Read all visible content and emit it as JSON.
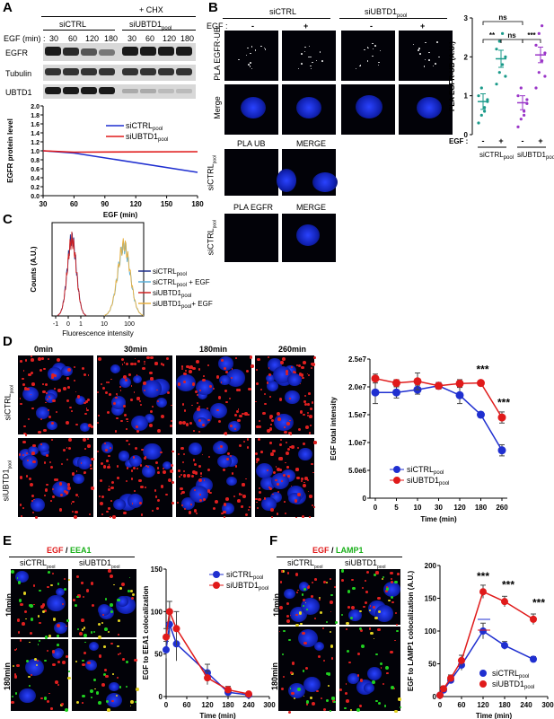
{
  "panels": {
    "A": "A",
    "B": "B",
    "C": "C",
    "D": "D",
    "E": "E",
    "F": "F"
  },
  "panelA": {
    "chx": "+ CHX",
    "siCTRL": "siCTRL",
    "siUBTD1": "siUBTD1",
    "siUBTD1_sub": "pool",
    "egf_label": "EGF (min) :",
    "timepoints": [
      "30",
      "60",
      "120",
      "180",
      "30",
      "60",
      "120",
      "180"
    ],
    "blots": [
      "EGFR",
      "Tubulin",
      "UBTD1"
    ]
  },
  "panelB": {
    "siCTRL": "siCTRL",
    "siUBTD1": "siUBTD1",
    "siUBTD1_sub": "pool",
    "egf": "EGF :",
    "signs": [
      "-",
      "+",
      "-",
      "+"
    ],
    "row_labels": [
      "PLA EGFR-UB",
      "Merge"
    ],
    "ctrl1_headers": [
      "PLA UB",
      "MERGE"
    ],
    "ctrl2_headers": [
      "PLA EGFR",
      "MERGE"
    ],
    "ctrl_row_label": "siCTRL",
    "ctrl_row_sub": "pool"
  },
  "panelD": {
    "times": [
      "0min",
      "30min",
      "180min",
      "260min"
    ],
    "rows": [
      "siCTRL",
      "siUBTD1"
    ],
    "row_sub": "pool"
  },
  "panelE": {
    "title_egf": "EGF",
    "title_sep": " / ",
    "title_marker": "EEA1",
    "cols": [
      "siCTRL",
      "siUBTD1"
    ],
    "col_sub": "pool",
    "rows": [
      "10min",
      "180min"
    ]
  },
  "panelF": {
    "title_egf": "EGF",
    "title_sep": " / ",
    "title_marker": "LAMP1",
    "cols": [
      "siCTRL",
      "siUBTD1"
    ],
    "col_sub": "pool",
    "rows": [
      "10min",
      "180min"
    ]
  },
  "colors": {
    "blue": "#1f2fd0",
    "red": "#e01a1a",
    "teal": "#1a9a8a",
    "purple": "#9a35c8",
    "egf": "#e01a1a",
    "eea1": "#1ab01a"
  },
  "chart_data": [
    {
      "id": "A",
      "type": "line",
      "x": [
        30,
        60,
        90,
        120,
        150,
        180
      ],
      "xticks": [
        "30",
        "60",
        "90",
        "120",
        "150",
        "180"
      ],
      "xlim": [
        30,
        180
      ],
      "ylim": [
        0,
        2.0
      ],
      "yticks": [
        "0.0",
        "0.2",
        "0.4",
        "0.6",
        "0.8",
        "1.0",
        "1.2",
        "1.4",
        "1.6",
        "1.8",
        "2.0"
      ],
      "xlabel": "EGF (min)",
      "ylabel": "EGFR protein level",
      "series": [
        {
          "name": "siCTRL",
          "sub": "pool",
          "color": "#1f2fd0",
          "x": [
            30,
            60,
            180
          ],
          "values": [
            1.0,
            0.95,
            0.52
          ]
        },
        {
          "name": "siUBTD1",
          "sub": "pool",
          "color": "#e01a1a",
          "x": [
            30,
            60,
            180
          ],
          "values": [
            1.0,
            0.97,
            0.98
          ]
        }
      ]
    },
    {
      "id": "B",
      "type": "scatter",
      "ylabel": "PLA EGFR-UB (A.U.)",
      "ylim": [
        0,
        3
      ],
      "yticks": [
        "0",
        "1",
        "2",
        "3"
      ],
      "egf_label": "EGF :",
      "groups": [
        {
          "sign": "-",
          "color": "#1a9a8a",
          "mean": 0.85,
          "sem": 0.2,
          "points": [
            0.3,
            0.5,
            0.7,
            0.85,
            1.0,
            1.2,
            0.6,
            0.9
          ]
        },
        {
          "sign": "+",
          "color": "#1a9a8a",
          "mean": 1.95,
          "sem": 0.22,
          "points": [
            1.3,
            1.6,
            1.8,
            2.0,
            2.2,
            2.4,
            2.6,
            1.5
          ]
        },
        {
          "sign": "-",
          "color": "#9a35c8",
          "mean": 0.82,
          "sem": 0.18,
          "points": [
            0.2,
            0.4,
            0.6,
            0.8,
            1.0,
            1.2,
            0.5,
            0.9
          ]
        },
        {
          "sign": "+",
          "color": "#9a35c8",
          "mean": 2.05,
          "sem": 0.2,
          "points": [
            1.2,
            1.6,
            1.9,
            2.1,
            2.3,
            2.6,
            2.8,
            1.5
          ]
        }
      ],
      "group_labels": [
        "siCTRL",
        "siUBTD1"
      ],
      "group_sub": "pool",
      "sig": [
        "**",
        "ns",
        "***",
        "ns"
      ]
    },
    {
      "id": "C",
      "type": "line",
      "xlabel": "Fluorescence intensity",
      "ylabel": "Counts (A.U.)",
      "xticks": [
        "-1",
        "0",
        "1",
        "10",
        "100"
      ],
      "legend": [
        {
          "name": "siCTRL",
          "sub": "pool",
          "suffix": "",
          "color": "#1f2f8a"
        },
        {
          "name": "siCTRL",
          "sub": "pool",
          "suffix": " + EGF",
          "color": "#5ab0d8"
        },
        {
          "name": "siUBTD1",
          "sub": "pool",
          "suffix": "",
          "color": "#d02020"
        },
        {
          "name": "siUBTD1",
          "sub": "pool",
          "suffix": "+ EGF",
          "color": "#e8b040"
        }
      ]
    },
    {
      "id": "D",
      "type": "line",
      "xticks": [
        "0",
        "5",
        "10",
        "30",
        "120",
        "180",
        "260"
      ],
      "xlabel": "Time (min)",
      "ylabel": "EGF total intensity",
      "yticks": [
        "0",
        "5.0e6",
        "1.0e7",
        "1.5e7",
        "2.0e7",
        "2.5e7"
      ],
      "ylim": [
        0,
        25000000
      ],
      "series": [
        {
          "name": "siCTRL",
          "sub": "pool",
          "color": "#1f2fd0",
          "values": [
            19000000,
            19000000,
            19500000,
            20200000,
            18500000,
            15000000,
            8600000
          ],
          "err": [
            2000000,
            1000000,
            800000,
            600000,
            1500000,
            500000,
            1000000
          ]
        },
        {
          "name": "siUBTD1",
          "sub": "pool",
          "color": "#e01a1a",
          "values": [
            21500000,
            20700000,
            21000000,
            20200000,
            20600000,
            20700000,
            14500000
          ],
          "err": [
            800000,
            600000,
            1500000,
            500000,
            700000,
            400000,
            1000000
          ]
        }
      ],
      "sig": [
        "***",
        "***"
      ]
    },
    {
      "id": "E",
      "type": "line",
      "xticks": [
        "0",
        "60",
        "120",
        "180",
        "240",
        "300"
      ],
      "xlim": [
        0,
        300
      ],
      "ylim": [
        0,
        150
      ],
      "yticks": [
        "0",
        "50",
        "100",
        "150"
      ],
      "xlabel": "Time (min)",
      "ylabel": "EGF to EEA1 colocalization",
      "series": [
        {
          "name": "siCTRL",
          "sub": "pool",
          "color": "#1f2fd0",
          "x": [
            0,
            10,
            30,
            120,
            180,
            240
          ],
          "values": [
            55,
            85,
            62,
            28,
            5,
            2
          ],
          "err": [
            10,
            15,
            20,
            10,
            3,
            2
          ]
        },
        {
          "name": "siUBTD1",
          "sub": "pool",
          "color": "#e01a1a",
          "x": [
            0,
            10,
            30,
            120,
            180,
            240
          ],
          "values": [
            70,
            100,
            80,
            22,
            8,
            3
          ],
          "err": [
            10,
            12,
            20,
            8,
            4,
            2
          ]
        }
      ]
    },
    {
      "id": "F",
      "type": "line",
      "xticks": [
        "0",
        "60",
        "120",
        "180",
        "240",
        "300"
      ],
      "xlim": [
        0,
        300
      ],
      "ylim": [
        0,
        200
      ],
      "yticks": [
        "0",
        "50",
        "100",
        "150",
        "200"
      ],
      "xlabel": "Time (min)",
      "ylabel": "EGF to LAMP1 colocalization (A.U.)",
      "series": [
        {
          "name": "siCTRL",
          "sub": "pool",
          "color": "#1f2fd0",
          "x": [
            0,
            10,
            30,
            60,
            120,
            180,
            260
          ],
          "values": [
            2,
            10,
            25,
            48,
            100,
            78,
            57
          ],
          "err": [
            2,
            4,
            5,
            8,
            12,
            6,
            4
          ]
        },
        {
          "name": "siUBTD1",
          "sub": "pool",
          "color": "#e01a1a",
          "x": [
            0,
            10,
            30,
            60,
            120,
            180,
            260
          ],
          "values": [
            2,
            12,
            28,
            55,
            160,
            145,
            118
          ],
          "err": [
            2,
            4,
            5,
            8,
            10,
            8,
            8
          ]
        }
      ],
      "sig": [
        "***",
        "***",
        "***"
      ]
    }
  ]
}
